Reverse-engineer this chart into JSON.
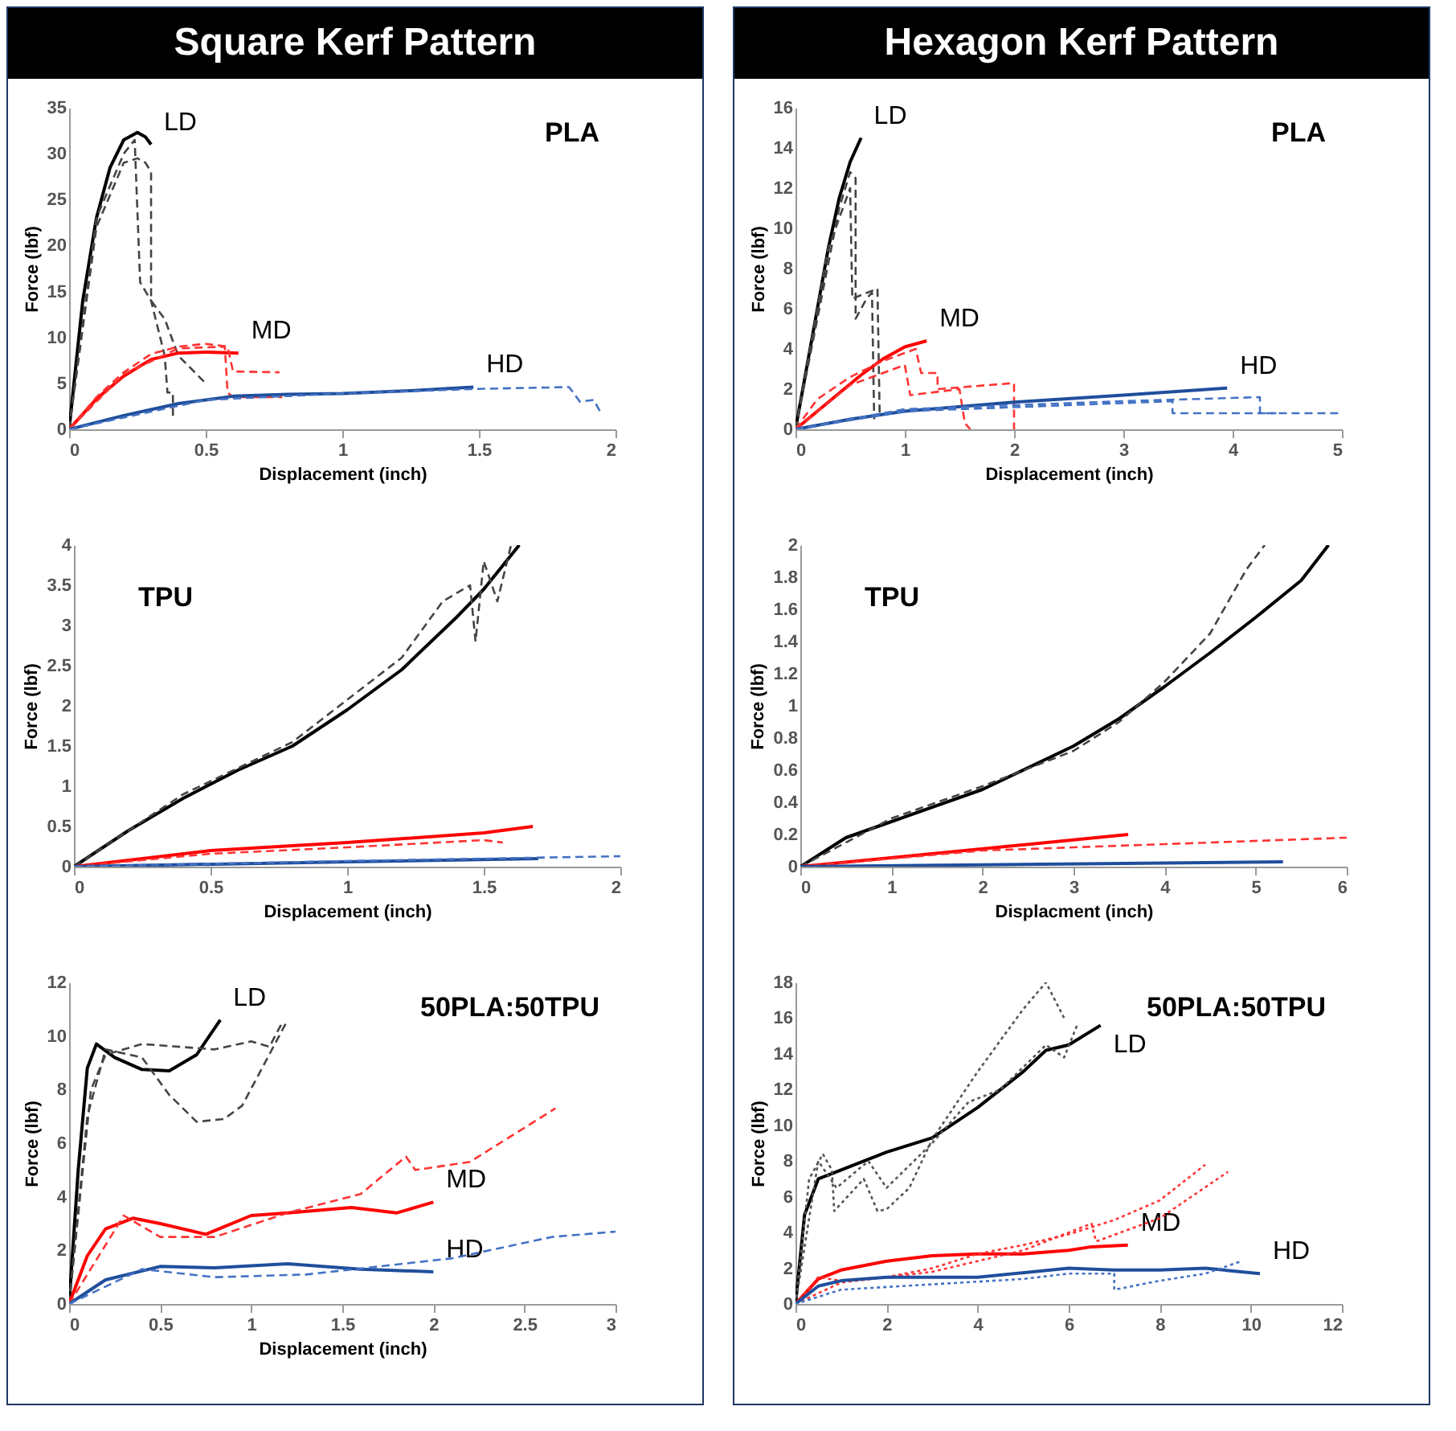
{
  "chart_data": [
    {
      "type": "line",
      "title": "PLA",
      "annotations": [
        "Square Kerf Pattern"
      ],
      "xlabel": "Displacement (inch)",
      "ylabel": "Force (lbf)",
      "xlim": [
        0,
        2
      ],
      "ylim": [
        0,
        35
      ],
      "xticks": [
        0,
        0.5,
        1,
        1.5,
        2
      ],
      "yticks": [
        0,
        5,
        10,
        15,
        20,
        25,
        30,
        35
      ],
      "grid": false,
      "series": [
        {
          "name": "LD",
          "color": "#000000",
          "line_style": "solid",
          "x": [
            0,
            0.05,
            0.1,
            0.15,
            0.2,
            0.25,
            0.28,
            0.3
          ],
          "values": [
            0,
            14,
            23,
            28.5,
            31.5,
            32.3,
            31.8,
            31
          ]
        },
        {
          "color": "#444444",
          "line_style": "dashed",
          "x": [
            0,
            0.1,
            0.2,
            0.25,
            0.28,
            0.3,
            0.3,
            0.35,
            0.4,
            0.5
          ],
          "values": [
            0,
            22,
            29,
            29.5,
            29,
            28,
            14,
            12,
            8,
            5
          ]
        },
        {
          "color": "#444444",
          "line_style": "dashed",
          "x": [
            0,
            0.1,
            0.2,
            0.24,
            0.26,
            0.3,
            0.35,
            0.36,
            0.38,
            0.38
          ],
          "values": [
            0,
            23,
            30,
            31.5,
            16,
            14,
            8,
            4,
            4,
            1
          ]
        },
        {
          "name": "MD",
          "color": "#ff0000",
          "line_style": "solid",
          "x": [
            0,
            0.1,
            0.2,
            0.3,
            0.4,
            0.5,
            0.62
          ],
          "values": [
            0,
            3.3,
            5.8,
            7.6,
            8.3,
            8.4,
            8.3
          ]
        },
        {
          "color": "#ff3333",
          "line_style": "dashed",
          "x": [
            0,
            0.1,
            0.2,
            0.3,
            0.4,
            0.5,
            0.58,
            0.6,
            0.77
          ],
          "values": [
            0,
            3.5,
            6.2,
            8.2,
            9,
            9.3,
            9,
            6.3,
            6.2
          ]
        },
        {
          "color": "#ff3333",
          "line_style": "dashed",
          "x": [
            0,
            0.2,
            0.4,
            0.57,
            0.58,
            0.6,
            0.78
          ],
          "values": [
            0,
            6,
            8.8,
            9,
            4,
            3.5,
            3.5
          ]
        },
        {
          "name": "HD",
          "color": "#1f4e9c",
          "line_style": "solid",
          "x": [
            0,
            0.2,
            0.4,
            0.6,
            0.8,
            1,
            1.25,
            1.48
          ],
          "values": [
            0,
            1.5,
            2.8,
            3.6,
            3.8,
            3.9,
            4.2,
            4.6
          ]
        },
        {
          "color": "#4472c4",
          "line_style": "dashed",
          "x": [
            0,
            0.5,
            1,
            1.5,
            1.83,
            1.87,
            1.92,
            1.95
          ],
          "values": [
            0,
            3.2,
            3.9,
            4.4,
            4.6,
            3,
            3.2,
            1.6
          ]
        }
      ]
    },
    {
      "type": "line",
      "title": "PLA",
      "annotations": [
        "Hexagon Kerf Pattern"
      ],
      "xlabel": "Displacement (inch)",
      "ylabel": "Force (lbf)",
      "xlim": [
        0,
        5
      ],
      "ylim": [
        0,
        16
      ],
      "xticks": [
        0,
        1,
        2,
        3,
        4,
        5
      ],
      "yticks": [
        0,
        2,
        4,
        6,
        8,
        10,
        12,
        14,
        16
      ],
      "grid": false,
      "series": [
        {
          "name": "LD",
          "color": "#000000",
          "line_style": "solid",
          "x": [
            0,
            0.1,
            0.2,
            0.3,
            0.4,
            0.5,
            0.6
          ],
          "values": [
            0,
            3,
            6,
            9,
            11.5,
            13.3,
            14.5
          ]
        },
        {
          "color": "#444444",
          "line_style": "dashed",
          "x": [
            0,
            0.2,
            0.4,
            0.5,
            0.55,
            0.55,
            0.65,
            0.7,
            0.72
          ],
          "values": [
            0,
            5.5,
            11,
            12.8,
            12.5,
            5.5,
            6.5,
            6.8,
            0.5
          ]
        },
        {
          "color": "#444444",
          "line_style": "dashed",
          "x": [
            0,
            0.3,
            0.5,
            0.52,
            0.75,
            0.77
          ],
          "values": [
            0,
            9,
            12,
            6.5,
            7,
            0.8
          ]
        },
        {
          "name": "MD",
          "color": "#ff0000",
          "line_style": "solid",
          "x": [
            0,
            0.2,
            0.4,
            0.6,
            0.8,
            1,
            1.2
          ],
          "values": [
            0,
            0.9,
            1.8,
            2.7,
            3.5,
            4.1,
            4.4
          ]
        },
        {
          "color": "#ff3333",
          "line_style": "dashed",
          "x": [
            0,
            0.2,
            0.5,
            0.8,
            1.1,
            1.15,
            1.3,
            1.3,
            2,
            2
          ],
          "values": [
            0,
            1.5,
            2.6,
            3.4,
            4,
            2.8,
            2.8,
            2,
            2.3,
            0
          ]
        },
        {
          "color": "#ff3333",
          "line_style": "dashed",
          "x": [
            0,
            0.5,
            1,
            1.05,
            1.5,
            1.55,
            1.6
          ],
          "values": [
            0,
            2.2,
            3.2,
            1.7,
            2,
            0.3,
            0
          ]
        },
        {
          "name": "HD",
          "color": "#1f4e9c",
          "line_style": "solid",
          "x": [
            0,
            0.5,
            1,
            2,
            3,
            3.95
          ],
          "values": [
            0,
            0.5,
            0.9,
            1.35,
            1.7,
            2.05
          ]
        },
        {
          "color": "#4472c4",
          "line_style": "dashed",
          "x": [
            0,
            1,
            2,
            3,
            4.25,
            4.25,
            5
          ],
          "values": [
            0,
            1,
            1.2,
            1.4,
            1.6,
            0.8,
            0.8
          ]
        },
        {
          "color": "#4472c4",
          "line_style": "dashed",
          "x": [
            0,
            1,
            2,
            3.45,
            3.45,
            4.4
          ],
          "values": [
            0,
            0.9,
            1.1,
            1.4,
            0.8,
            0.8
          ]
        }
      ]
    },
    {
      "type": "line",
      "title": "TPU",
      "xlabel": "Displacement (inch)",
      "ylabel": "Force (lbf)",
      "xlim": [
        0,
        2
      ],
      "ylim": [
        0,
        4
      ],
      "xticks": [
        0,
        0.5,
        1,
        1.5,
        2
      ],
      "yticks": [
        0,
        0.5,
        1,
        1.5,
        2,
        2.5,
        3,
        3.5,
        4
      ],
      "grid": false,
      "series": [
        {
          "color": "#000000",
          "line_style": "solid",
          "x": [
            0,
            0.2,
            0.4,
            0.6,
            0.8,
            1,
            1.2,
            1.4,
            1.5,
            1.63
          ],
          "values": [
            0,
            0.45,
            0.85,
            1.2,
            1.5,
            1.95,
            2.45,
            3.1,
            3.45,
            4
          ]
        },
        {
          "color": "#444444",
          "line_style": "dashed",
          "x": [
            0,
            0.4,
            0.8,
            1.2,
            1.35,
            1.45,
            1.47,
            1.5,
            1.55,
            1.6
          ],
          "values": [
            0,
            0.9,
            1.55,
            2.6,
            3.3,
            3.5,
            2.8,
            3.8,
            3.3,
            4
          ]
        },
        {
          "color": "#ff0000",
          "line_style": "solid",
          "x": [
            0,
            0.5,
            1,
            1.5,
            1.68
          ],
          "values": [
            0,
            0.2,
            0.3,
            0.42,
            0.5
          ]
        },
        {
          "color": "#ff3333",
          "line_style": "dashed",
          "x": [
            0,
            0.5,
            1,
            1.5,
            1.57
          ],
          "values": [
            0,
            0.16,
            0.24,
            0.33,
            0.3
          ]
        },
        {
          "color": "#1f4e9c",
          "line_style": "solid",
          "x": [
            0,
            1,
            1.7
          ],
          "values": [
            0,
            0.06,
            0.1
          ]
        },
        {
          "color": "#4472c4",
          "line_style": "dashed",
          "x": [
            0,
            1,
            2
          ],
          "values": [
            0,
            0.07,
            0.13
          ]
        }
      ]
    },
    {
      "type": "line",
      "title": "TPU",
      "xlabel": "Displacment  (inch)",
      "ylabel": "Force (lbf)",
      "xlim": [
        0,
        6
      ],
      "ylim": [
        0,
        2
      ],
      "xticks": [
        0,
        1,
        2,
        3,
        4,
        5,
        6
      ],
      "yticks": [
        0,
        0.2,
        0.4,
        0.6,
        0.8,
        1,
        1.2,
        1.4,
        1.6,
        1.8,
        2
      ],
      "grid": false,
      "series": [
        {
          "color": "#000000",
          "line_style": "solid",
          "x": [
            0,
            0.5,
            1,
            2,
            3,
            3.5,
            4,
            4.5,
            5,
            5.5,
            5.8
          ],
          "values": [
            0,
            0.18,
            0.28,
            0.48,
            0.75,
            0.92,
            1.12,
            1.33,
            1.55,
            1.78,
            2
          ]
        },
        {
          "color": "#444444",
          "line_style": "dashed",
          "x": [
            0,
            1,
            2,
            3,
            3.5,
            4,
            4.5,
            4.9,
            5.1
          ],
          "values": [
            0,
            0.3,
            0.5,
            0.72,
            0.9,
            1.15,
            1.45,
            1.85,
            2
          ]
        },
        {
          "color": "#ff0000",
          "line_style": "solid",
          "x": [
            0,
            3.6
          ],
          "values": [
            0,
            0.2
          ]
        },
        {
          "color": "#ff3333",
          "line_style": "dashed",
          "x": [
            0,
            2,
            4,
            6
          ],
          "values": [
            0,
            0.1,
            0.14,
            0.18
          ]
        },
        {
          "color": "#1f4e9c",
          "line_style": "solid",
          "x": [
            0,
            5.3
          ],
          "values": [
            0,
            0.03
          ]
        }
      ]
    },
    {
      "type": "line",
      "title": "50PLA:50TPU",
      "xlabel": "Displacement (inch)",
      "ylabel": "Force (lbf)",
      "xlim": [
        0,
        3
      ],
      "ylim": [
        0,
        12
      ],
      "xticks": [
        0,
        0.5,
        1,
        1.5,
        2,
        2.5,
        3
      ],
      "yticks": [
        0,
        2,
        4,
        6,
        8,
        10,
        12
      ],
      "grid": false,
      "series": [
        {
          "name": "LD",
          "color": "#000000",
          "line_style": "solid",
          "x": [
            0,
            0.05,
            0.1,
            0.15,
            0.25,
            0.4,
            0.55,
            0.7,
            0.83
          ],
          "values": [
            0,
            5,
            8.8,
            9.7,
            9.2,
            8.75,
            8.7,
            9.3,
            10.6
          ]
        },
        {
          "color": "#444444",
          "line_style": "dashed",
          "x": [
            0,
            0.1,
            0.2,
            0.4,
            0.55,
            0.7,
            0.85,
            0.95,
            1.2
          ],
          "values": [
            0,
            7,
            9.5,
            9.2,
            7.8,
            6.8,
            6.9,
            7.4,
            10.6
          ]
        },
        {
          "color": "#444444",
          "line_style": "dashed",
          "x": [
            0,
            0.12,
            0.2,
            0.4,
            0.8,
            1,
            1.1,
            1.17
          ],
          "values": [
            0,
            8,
            9.3,
            9.7,
            9.5,
            9.8,
            9.6,
            10.5
          ]
        },
        {
          "name": "MD",
          "color": "#ff0000",
          "line_style": "solid",
          "x": [
            0,
            0.1,
            0.2,
            0.35,
            0.5,
            0.75,
            1,
            1.2,
            1.55,
            1.8,
            1.95,
            2
          ],
          "values": [
            0,
            1.8,
            2.8,
            3.2,
            3,
            2.6,
            3.3,
            3.4,
            3.6,
            3.4,
            3.7,
            3.8
          ]
        },
        {
          "color": "#ff3333",
          "line_style": "dashed",
          "x": [
            0,
            0.3,
            0.5,
            0.8,
            1.2,
            1.6,
            1.85,
            1.9,
            2.2,
            2.67
          ],
          "values": [
            0,
            3.3,
            2.5,
            2.5,
            3.4,
            4.1,
            5.5,
            5,
            5.3,
            7.3
          ]
        },
        {
          "name": "HD",
          "color": "#1f4e9c",
          "line_style": "solid",
          "x": [
            0,
            0.2,
            0.5,
            0.8,
            1.2,
            1.6,
            2
          ],
          "values": [
            0,
            0.9,
            1.4,
            1.35,
            1.5,
            1.3,
            1.2
          ]
        },
        {
          "color": "#4472c4",
          "line_style": "dashed",
          "x": [
            0,
            0.4,
            0.8,
            1.3,
            2.1,
            2.65,
            3
          ],
          "values": [
            0,
            1.3,
            1,
            1.1,
            1.7,
            2.5,
            2.7
          ]
        }
      ]
    },
    {
      "type": "line",
      "title": "50PLA:50TPU",
      "ylabel": "Force (lbf)",
      "xlim": [
        0,
        12
      ],
      "ylim": [
        0,
        18
      ],
      "xticks": [
        0,
        2,
        4,
        6,
        8,
        10,
        12
      ],
      "yticks": [
        0,
        2,
        4,
        6,
        8,
        10,
        12,
        14,
        16,
        18
      ],
      "grid": false,
      "series": [
        {
          "name": "LD",
          "color": "#000000",
          "line_style": "solid",
          "x": [
            0,
            0.2,
            0.5,
            1,
            2,
            3,
            4,
            5,
            5.5,
            6,
            6.7
          ],
          "values": [
            0,
            5,
            7,
            7.5,
            8.5,
            9.3,
            11,
            13,
            14.2,
            14.5,
            15.6
          ]
        },
        {
          "color": "#555555",
          "line_style": "dotted",
          "x": [
            0,
            0.3,
            0.6,
            0.8,
            0.85,
            1.5,
            1.8,
            2,
            2.5,
            3,
            4,
            5,
            5.5,
            5.9
          ],
          "values": [
            0,
            7,
            8.4,
            7.5,
            5.2,
            7,
            5.2,
            5.3,
            6.5,
            9.2,
            13,
            16.5,
            18,
            16
          ]
        },
        {
          "color": "#555555",
          "line_style": "dotted",
          "x": [
            0,
            0.5,
            0.9,
            1.6,
            2,
            3,
            3.8,
            4.5,
            5.5,
            5.9,
            6.2
          ],
          "values": [
            0,
            8,
            6.5,
            8,
            6.5,
            9,
            11.3,
            12,
            14.5,
            13.8,
            15.7
          ]
        },
        {
          "name": "MD",
          "color": "#ff0000",
          "line_style": "solid",
          "x": [
            0,
            0.5,
            1,
            2,
            3,
            4,
            5,
            6,
            6.5,
            7.3
          ],
          "values": [
            0,
            1.4,
            1.9,
            2.4,
            2.7,
            2.8,
            2.8,
            3,
            3.2,
            3.3
          ]
        },
        {
          "color": "#ff3333",
          "line_style": "dotted",
          "x": [
            0,
            0.5,
            1,
            2,
            3,
            4,
            5,
            6,
            7,
            8,
            9
          ],
          "values": [
            0,
            1.5,
            1.3,
            1.5,
            2,
            2.8,
            3.3,
            3.9,
            4.7,
            5.8,
            7.8
          ]
        },
        {
          "color": "#ff3333",
          "line_style": "dotted",
          "x": [
            0,
            1,
            3,
            5,
            6.5,
            6.6,
            8,
            9.5
          ],
          "values": [
            0,
            1.2,
            1.8,
            3,
            4.5,
            3.5,
            4.8,
            7.4
          ]
        },
        {
          "name": "HD",
          "color": "#1f4e9c",
          "line_style": "solid",
          "x": [
            0,
            0.5,
            1,
            2,
            4,
            6,
            7,
            8,
            9,
            10.2
          ],
          "values": [
            0,
            1,
            1.3,
            1.5,
            1.5,
            2,
            1.9,
            1.9,
            2,
            1.7
          ]
        },
        {
          "color": "#4472c4",
          "line_style": "dotted",
          "x": [
            0,
            1,
            3,
            5,
            6,
            7,
            7,
            8,
            9,
            9.8
          ],
          "values": [
            0,
            0.8,
            1.1,
            1.4,
            1.7,
            1.7,
            0.8,
            1.3,
            1.7,
            2.4
          ]
        }
      ]
    }
  ]
}
